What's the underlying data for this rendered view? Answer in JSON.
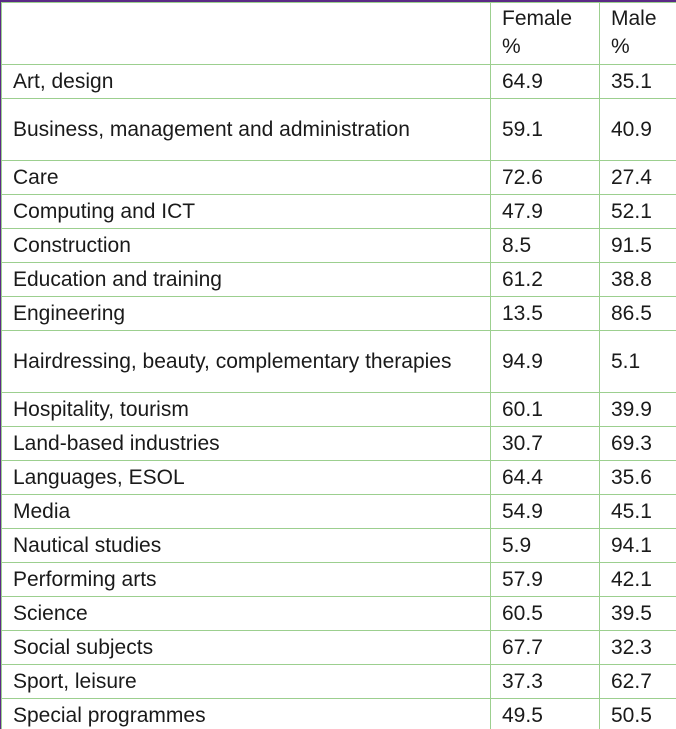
{
  "table": {
    "headers": [
      "",
      "Female %",
      "Male %"
    ],
    "rows": [
      {
        "subject": "Art, design",
        "female": "64.9",
        "male": "35.1"
      },
      {
        "subject": "Business, management and administration",
        "female": "59.1",
        "male": "40.9"
      },
      {
        "subject": "Care",
        "female": "72.6",
        "male": "27.4"
      },
      {
        "subject": "Computing and ICT",
        "female": "47.9",
        "male": "52.1"
      },
      {
        "subject": "Construction",
        "female": "8.5",
        "male": "91.5"
      },
      {
        "subject": "Education and training",
        "female": "61.2",
        "male": "38.8"
      },
      {
        "subject": "Engineering",
        "female": "13.5",
        "male": "86.5"
      },
      {
        "subject": "Hairdressing, beauty, complementary therapies",
        "female": "94.9",
        "male": "5.1"
      },
      {
        "subject": "Hospitality, tourism",
        "female": "60.1",
        "male": "39.9"
      },
      {
        "subject": "Land-based industries",
        "female": "30.7",
        "male": "69.3"
      },
      {
        "subject": "Languages, ESOL",
        "female": "64.4",
        "male": "35.6"
      },
      {
        "subject": "Media",
        "female": "54.9",
        "male": "45.1"
      },
      {
        "subject": "Nautical studies",
        "female": "5.9",
        "male": "94.1"
      },
      {
        "subject": "Performing arts",
        "female": "57.9",
        "male": "42.1"
      },
      {
        "subject": "Science",
        "female": "60.5",
        "male": "39.5"
      },
      {
        "subject": "Social subjects",
        "female": "67.7",
        "male": "32.3"
      },
      {
        "subject": "Sport, leisure",
        "female": "37.3",
        "male": "62.7"
      },
      {
        "subject": "Special programmes",
        "female": "49.5",
        "male": "50.5"
      }
    ]
  },
  "colors": {
    "top_border": "#5b2a86",
    "grid_lines": "#9ccf8f",
    "text": "#1a1a1a"
  }
}
